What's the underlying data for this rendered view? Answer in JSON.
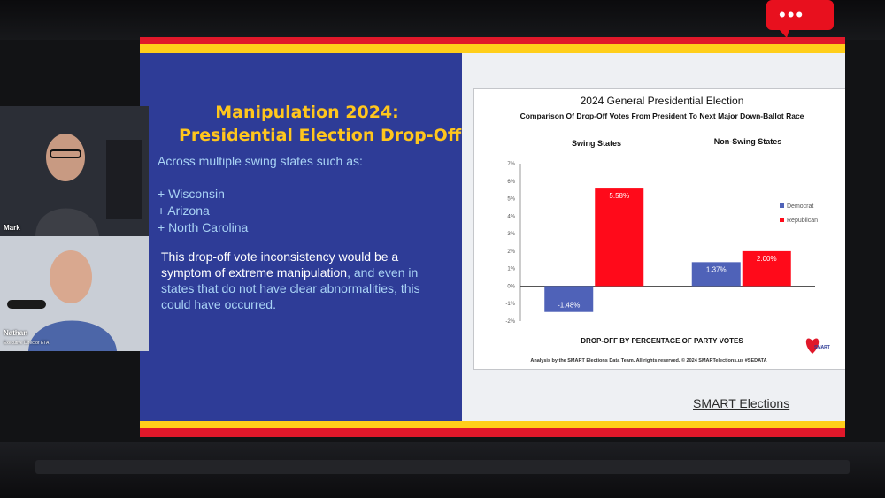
{
  "slide": {
    "title_line1": "Manipulation 2024:",
    "title_line2": "Presidential Election Drop-Off",
    "intro": "Across multiple swing states such as:",
    "bullets": [
      "+ Wisconsin",
      "+ Arizona",
      "+ North Carolina"
    ],
    "para_part1": "This drop-off vote inconsistency would be a symptom of extreme manipulation",
    "para_part2": ", and even in states that do not have clear abnormalities, this could have occurred.",
    "brand_link": "SMART Elections"
  },
  "chart_data": {
    "type": "bar",
    "title": "2024 General Presidential Election",
    "subtitle": "Comparison Of Drop-Off Votes From President To Next Major Down-Ballot Race",
    "categories": [
      "Swing States",
      "Non-Swing States"
    ],
    "series": [
      {
        "name": "Democrat",
        "values": [
          -1.48,
          1.37
        ],
        "labels": [
          "-1.48%",
          "1.37%"
        ],
        "color": "#4f62b8"
      },
      {
        "name": "Republican",
        "values": [
          5.58,
          2.0
        ],
        "labels": [
          "5.58%",
          "2.00%"
        ],
        "color": "#ff0a1a"
      }
    ],
    "ylim": [
      -2,
      7
    ],
    "yticks": [
      "-2%",
      "-1%",
      "0%",
      "1%",
      "2%",
      "3%",
      "4%",
      "5%",
      "6%",
      "7%"
    ],
    "xlabel": "DROP-OFF BY PERCENTAGE OF PARTY VOTES",
    "footer": "Analysis by the SMART Elections Data Team. All rights reserved. © 2024 SMARTelections.us #SEDATA",
    "logo_text": "SMART",
    "legend_position": "top-right",
    "grid": false
  },
  "overlay": {
    "chat_icon": "speech-bubble-icon",
    "chat_dots": "•••"
  },
  "cameras": {
    "host": {
      "name": "Mark"
    },
    "guest": {
      "name": "Nathan",
      "title": "Executive Director ETA"
    }
  },
  "colors": {
    "panel_blue": "#2e3c97",
    "title_yellow": "#ffc61d",
    "text_light_blue": "#a9d3f5",
    "stripe_red": "#e0182a",
    "stripe_yellow": "#ffce1a"
  }
}
